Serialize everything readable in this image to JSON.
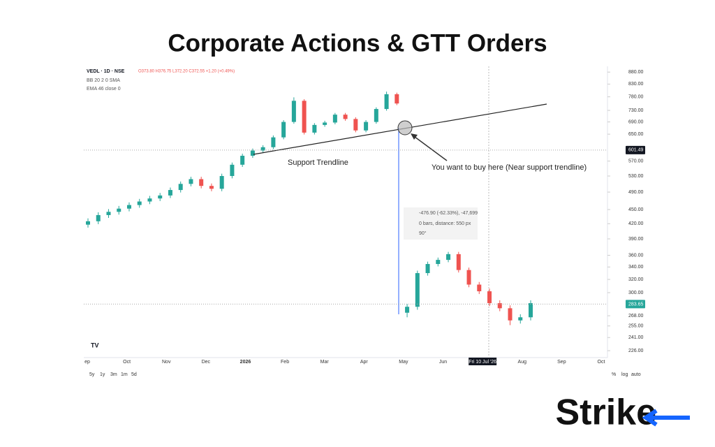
{
  "chart_data": {
    "type": "candlestick",
    "title": "Corporate Actions & GTT Orders",
    "symbol": "VEDL · 1D · NSE",
    "ohlc_text": "O373.80 H376.75 L372.20 C372.55 +1.20 (+0.49%)",
    "indicators": [
      "BB 20 2 0 SMA",
      "EMA 46 close 0"
    ],
    "annotations": [
      "Support Trendline",
      "You want to buy here (Near support trendline)"
    ],
    "measure": [
      "-476.90 (-62.33%), -47,699",
      "0 bars, distance: 550 px",
      "90°"
    ],
    "categories": [
      "ep",
      "Oct",
      "Nov",
      "Dec",
      "2026",
      "Feb",
      "Mar",
      "Apr",
      "May",
      "Jun",
      "Fri 10 Jul '26",
      "Aug",
      "Sep",
      "Oct"
    ],
    "open": [
      418,
      425,
      438,
      445,
      452,
      460,
      468,
      475,
      482,
      495,
      510,
      522,
      505,
      498,
      530,
      560,
      585,
      600,
      610,
      640,
      690,
      765,
      655,
      680,
      688,
      715,
      700,
      662,
      690,
      735,
      790,
      272,
      280,
      330,
      345,
      352,
      362,
      335,
      312,
      302,
      285,
      278,
      262,
      266
    ],
    "high": [
      431,
      444,
      451,
      458,
      466,
      474,
      481,
      488,
      501,
      516,
      528,
      528,
      511,
      536,
      566,
      591,
      606,
      616,
      646,
      696,
      778,
      771,
      686,
      694,
      721,
      721,
      706,
      696,
      741,
      800,
      796,
      284,
      334,
      349,
      356,
      366,
      366,
      339,
      316,
      306,
      289,
      282,
      270,
      289
    ],
    "low": [
      412,
      419,
      432,
      439,
      446,
      454,
      462,
      469,
      476,
      489,
      504,
      499,
      492,
      492,
      524,
      554,
      579,
      594,
      604,
      634,
      684,
      649,
      649,
      674,
      682,
      694,
      656,
      656,
      684,
      729,
      749,
      266,
      276,
      326,
      341,
      348,
      331,
      308,
      298,
      281,
      274,
      256,
      258,
      262
    ],
    "close": [
      425,
      438,
      445,
      452,
      460,
      468,
      475,
      482,
      495,
      510,
      522,
      505,
      498,
      530,
      560,
      585,
      600,
      610,
      640,
      690,
      765,
      655,
      680,
      688,
      715,
      700,
      662,
      690,
      735,
      790,
      755,
      280,
      330,
      345,
      352,
      362,
      335,
      312,
      302,
      285,
      278,
      262,
      266,
      285
    ],
    "up_color": "#26a69a",
    "down_color": "#ef5350",
    "log_scale": true,
    "ylim": [
      220,
      905
    ],
    "yticks": [
      {
        "value": 880,
        "label": "880.00"
      },
      {
        "value": 830,
        "label": "830.00"
      },
      {
        "value": 780,
        "label": "780.00"
      },
      {
        "value": 730,
        "label": "730.00"
      },
      {
        "value": 690,
        "label": "690.00"
      },
      {
        "value": 650,
        "label": "650.00"
      },
      {
        "value": 570,
        "label": "570.00"
      },
      {
        "value": 530,
        "label": "530.00"
      },
      {
        "value": 490,
        "label": "490.00"
      },
      {
        "value": 450,
        "label": "450.00"
      },
      {
        "value": 420,
        "label": "420.00"
      },
      {
        "value": 390,
        "label": "390.00"
      },
      {
        "value": 360,
        "label": "360.00"
      },
      {
        "value": 340,
        "label": "340.00"
      },
      {
        "value": 320,
        "label": "320.00"
      },
      {
        "value": 300,
        "label": "300.00"
      },
      {
        "value": 268,
        "label": "268.00"
      },
      {
        "value": 255,
        "label": "255.00"
      },
      {
        "value": 241,
        "label": "241.00"
      },
      {
        "value": 226,
        "label": "226.00"
      }
    ],
    "price_lines": [
      {
        "value": 601.49,
        "color": "#131722"
      },
      {
        "value": 283.65,
        "color": "#26a69a"
      }
    ],
    "ranges": [
      "5y",
      "1y",
      "3m",
      "1m",
      "5d"
    ],
    "scale_buttons": [
      "%",
      "log",
      "auto"
    ],
    "brand": "Strike"
  }
}
